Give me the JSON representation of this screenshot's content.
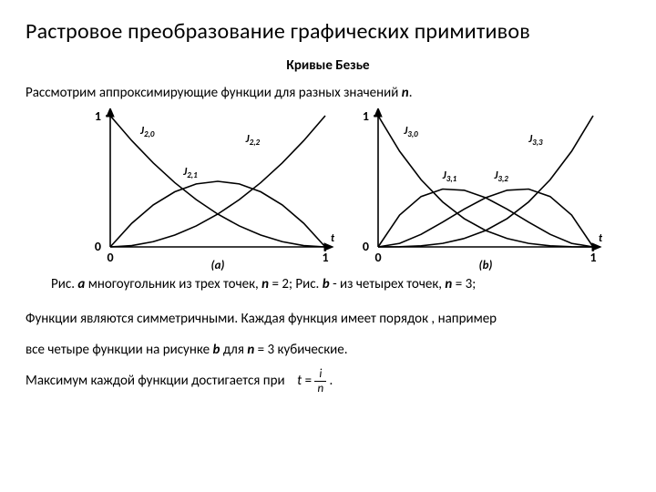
{
  "title": "Растровое преобразование графических примитивов",
  "subtitle": "Кривые Безье",
  "intro_prefix": "Рассмотрим аппроксимирующие функции для разных значений ",
  "intro_var": "n",
  "intro_suffix": ".",
  "caption": {
    "a_prefix": "Рис. ",
    "a_label": "a",
    "a_mid": " многоугольник из трех точек, ",
    "a_var": "n",
    "a_eq": " = 2;   ",
    "b_prefix": "Рис. ",
    "b_label": "b",
    "b_mid": " - из четырех точек, ",
    "b_var": "n",
    "b_eq": " = 3;"
  },
  "para1": "Функции являются симметричными. Каждая функция имеет порядок , например",
  "para2_a": "все четыре функции на рисунке ",
  "para2_b": "b",
  "para2_c": "  для  ",
  "para2_d": "n",
  "para2_e": " = 3 кубические.",
  "para3": "Максимум каждой функции достигается при",
  "formula": {
    "lhs": "t",
    "eq": " = ",
    "num": "i",
    "den": "n",
    "tail": " ."
  },
  "fig_a": {
    "type": "line",
    "panel_label": "(a)",
    "xlim": [
      0,
      1
    ],
    "ylim": [
      0,
      1
    ],
    "xticks": [
      0,
      1
    ],
    "yticks": [
      0,
      1
    ],
    "axis_color": "#000000",
    "line_color": "#000000",
    "line_width": 1.6,
    "label_fontsize": 12,
    "curve_labels": [
      "J2,0",
      "J2,1",
      "J2,2"
    ],
    "t_label": "t",
    "series": {
      "J20": [
        [
          0,
          1
        ],
        [
          0.1,
          0.81
        ],
        [
          0.2,
          0.64
        ],
        [
          0.3,
          0.49
        ],
        [
          0.4,
          0.36
        ],
        [
          0.5,
          0.25
        ],
        [
          0.6,
          0.16
        ],
        [
          0.7,
          0.09
        ],
        [
          0.8,
          0.04
        ],
        [
          0.9,
          0.01
        ],
        [
          1,
          0
        ]
      ],
      "J21": [
        [
          0,
          0
        ],
        [
          0.1,
          0.18
        ],
        [
          0.2,
          0.32
        ],
        [
          0.3,
          0.42
        ],
        [
          0.4,
          0.48
        ],
        [
          0.5,
          0.5
        ],
        [
          0.6,
          0.48
        ],
        [
          0.7,
          0.42
        ],
        [
          0.8,
          0.32
        ],
        [
          0.9,
          0.18
        ],
        [
          1,
          0
        ]
      ],
      "J22": [
        [
          0,
          0
        ],
        [
          0.1,
          0.01
        ],
        [
          0.2,
          0.04
        ],
        [
          0.3,
          0.09
        ],
        [
          0.4,
          0.16
        ],
        [
          0.5,
          0.25
        ],
        [
          0.6,
          0.36
        ],
        [
          0.7,
          0.49
        ],
        [
          0.8,
          0.64
        ],
        [
          0.9,
          0.81
        ],
        [
          1,
          1
        ]
      ]
    }
  },
  "fig_b": {
    "type": "line",
    "panel_label": "(b)",
    "xlim": [
      0,
      1
    ],
    "ylim": [
      0,
      1
    ],
    "xticks": [
      0,
      1
    ],
    "yticks": [
      0,
      1
    ],
    "axis_color": "#000000",
    "line_color": "#000000",
    "line_width": 1.6,
    "label_fontsize": 12,
    "curve_labels": [
      "J3,0",
      "J3,1",
      "J3,2",
      "J3,3"
    ],
    "t_label": "t",
    "series": {
      "J30": [
        [
          0,
          1
        ],
        [
          0.1,
          0.729
        ],
        [
          0.2,
          0.512
        ],
        [
          0.3,
          0.343
        ],
        [
          0.4,
          0.216
        ],
        [
          0.5,
          0.125
        ],
        [
          0.6,
          0.064
        ],
        [
          0.7,
          0.027
        ],
        [
          0.8,
          0.008
        ],
        [
          0.9,
          0.001
        ],
        [
          1,
          0
        ]
      ],
      "J31": [
        [
          0,
          0
        ],
        [
          0.1,
          0.243
        ],
        [
          0.2,
          0.384
        ],
        [
          0.3,
          0.441
        ],
        [
          0.4,
          0.432
        ],
        [
          0.5,
          0.375
        ],
        [
          0.6,
          0.288
        ],
        [
          0.7,
          0.189
        ],
        [
          0.8,
          0.096
        ],
        [
          0.9,
          0.027
        ],
        [
          1,
          0
        ]
      ],
      "J32": [
        [
          0,
          0
        ],
        [
          0.1,
          0.027
        ],
        [
          0.2,
          0.096
        ],
        [
          0.3,
          0.189
        ],
        [
          0.4,
          0.288
        ],
        [
          0.5,
          0.375
        ],
        [
          0.6,
          0.432
        ],
        [
          0.7,
          0.441
        ],
        [
          0.8,
          0.384
        ],
        [
          0.9,
          0.243
        ],
        [
          1,
          0
        ]
      ],
      "J33": [
        [
          0,
          0
        ],
        [
          0.1,
          0.001
        ],
        [
          0.2,
          0.008
        ],
        [
          0.3,
          0.027
        ],
        [
          0.4,
          0.064
        ],
        [
          0.5,
          0.125
        ],
        [
          0.6,
          0.216
        ],
        [
          0.7,
          0.343
        ],
        [
          0.8,
          0.512
        ],
        [
          0.9,
          0.729
        ],
        [
          1,
          1
        ]
      ]
    }
  }
}
